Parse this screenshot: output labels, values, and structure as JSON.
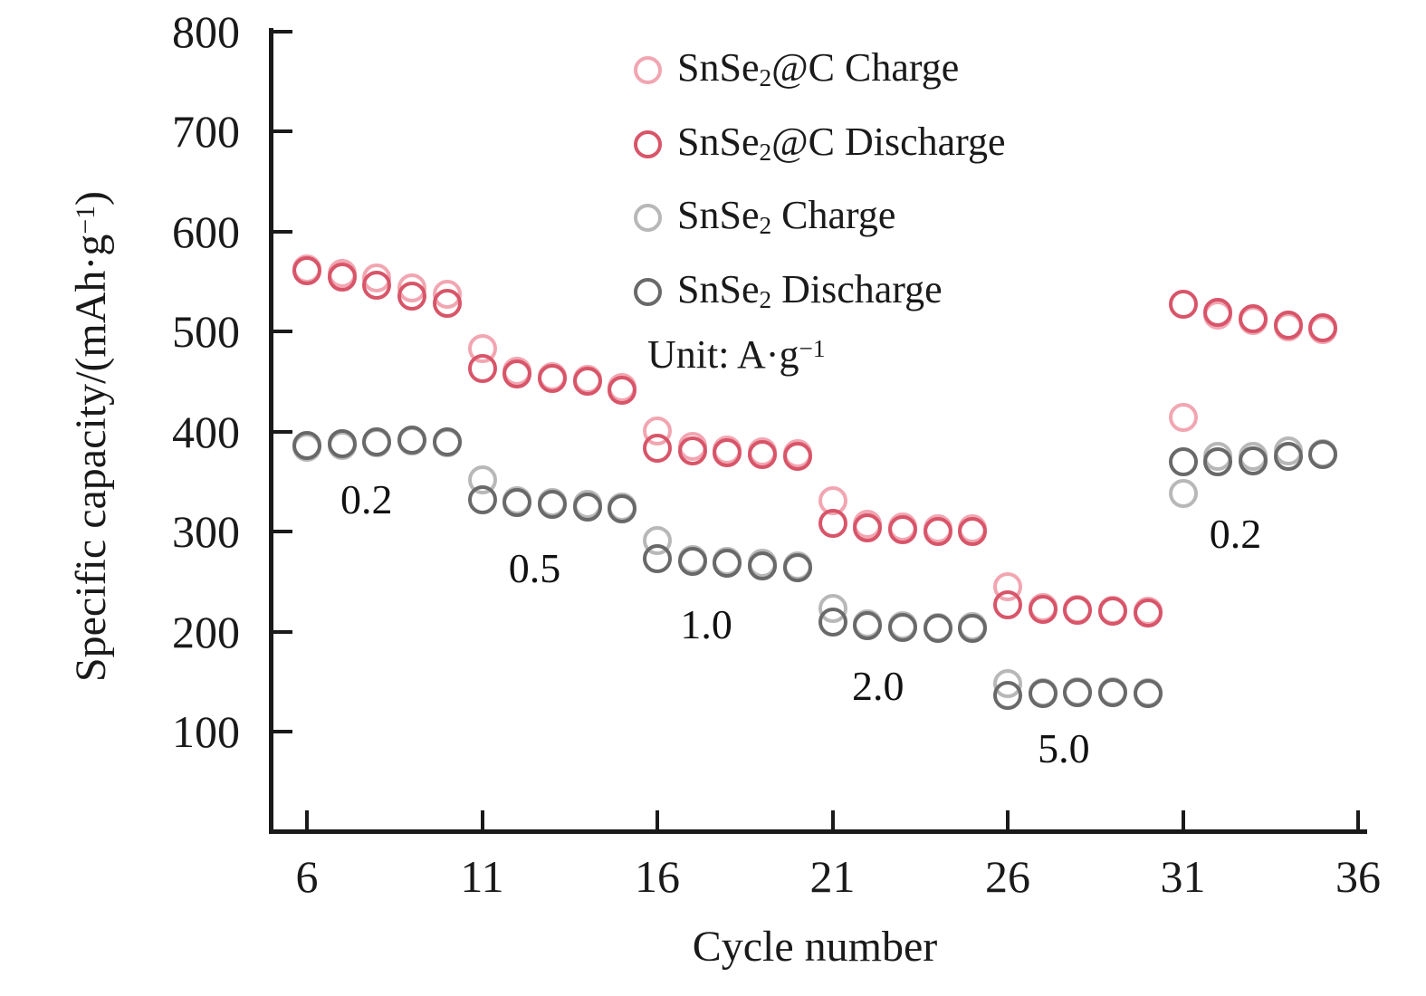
{
  "figure": {
    "background": "#ffffff",
    "text_color": "#1a1a1a",
    "x_axis_title": "Cycle number"
  },
  "y_axis_title_segments": [
    {
      "t": "Specific capacity/(mAh·g"
    },
    {
      "t": "−1",
      "sup": true
    },
    {
      "t": ")"
    }
  ],
  "legend": {
    "items": [
      {
        "key": "snse2c-charge",
        "color": "#f2a6b2",
        "segments": [
          {
            "t": "SnSe"
          },
          {
            "t": "2",
            "sub": true
          },
          {
            "t": "@C Charge"
          }
        ]
      },
      {
        "key": "snse2c-discharge",
        "color": "#d85569",
        "segments": [
          {
            "t": "SnSe"
          },
          {
            "t": "2",
            "sub": true
          },
          {
            "t": "@C Discharge"
          }
        ]
      },
      {
        "key": "snse2-charge",
        "color": "#b8b8b8",
        "segments": [
          {
            "t": "SnSe"
          },
          {
            "t": "2",
            "sub": true
          },
          {
            "t": " Charge"
          }
        ]
      },
      {
        "key": "snse2-discharge",
        "color": "#696969",
        "segments": [
          {
            "t": "SnSe"
          },
          {
            "t": "2",
            "sub": true
          },
          {
            "t": " Discharge"
          }
        ]
      }
    ],
    "unit_segments": [
      {
        "t": "Unit: A·g"
      },
      {
        "t": "−1",
        "sup": true
      }
    ]
  },
  "chart_data": {
    "type": "scatter",
    "title": "",
    "xlabel": "Cycle number",
    "ylabel": "Specific capacity/(mAh·g−1)",
    "xlim": [
      5,
      36.3
    ],
    "ylim": [
      0,
      800
    ],
    "x_ticks": [
      6,
      11,
      16,
      21,
      26,
      31,
      36
    ],
    "y_ticks": [
      100,
      200,
      300,
      400,
      500,
      600,
      700,
      800
    ],
    "grid": false,
    "legend_position": "upper-center-right",
    "rate_unit": "A·g−1",
    "x": [
      6,
      7,
      8,
      9,
      10,
      11,
      12,
      13,
      14,
      15,
      16,
      17,
      18,
      19,
      20,
      21,
      22,
      23,
      24,
      25,
      26,
      27,
      28,
      29,
      30,
      31,
      32,
      33,
      34,
      35
    ],
    "series": [
      {
        "name": "SnSe2@C Charge",
        "color": "#f2a6b2",
        "values": [
          563,
          558,
          554,
          544,
          537,
          483,
          460,
          455,
          452,
          444,
          401,
          385,
          382,
          380,
          378,
          331,
          307,
          305,
          303,
          303,
          245,
          224,
          222,
          221,
          220,
          414,
          517,
          511,
          505,
          502
        ]
      },
      {
        "name": "SnSe2 Charge",
        "color": "#b8b8b8",
        "values": [
          384,
          386,
          389,
          391,
          389,
          352,
          331,
          329,
          327,
          325,
          291,
          272,
          270,
          268,
          266,
          223,
          208,
          206,
          204,
          205,
          148,
          139,
          140,
          140,
          139,
          338,
          375,
          375,
          381,
          378
        ]
      },
      {
        "name": "SnSe2@C Discharge",
        "color": "#d85569",
        "values": [
          561,
          555,
          546,
          536,
          528,
          463,
          458,
          453,
          450,
          441,
          383,
          381,
          379,
          377,
          375,
          308,
          304,
          302,
          300,
          300,
          227,
          222,
          221,
          220,
          219,
          527,
          519,
          513,
          507,
          504
        ]
      },
      {
        "name": "SnSe2 Discharge",
        "color": "#696969",
        "values": [
          386,
          388,
          390,
          392,
          390,
          332,
          329,
          327,
          325,
          323,
          273,
          270,
          268,
          266,
          264,
          210,
          206,
          204,
          203,
          203,
          136,
          138,
          139,
          139,
          138,
          370,
          370,
          371,
          375,
          377
        ]
      }
    ],
    "rate_labels": [
      {
        "text": "0.2",
        "cycle": 7.7,
        "value": 332
      },
      {
        "text": "0.5",
        "cycle": 12.5,
        "value": 263
      },
      {
        "text": "1.0",
        "cycle": 17.4,
        "value": 207
      },
      {
        "text": "2.0",
        "cycle": 22.3,
        "value": 145
      },
      {
        "text": "5.0",
        "cycle": 27.6,
        "value": 83
      },
      {
        "text": "0.2",
        "cycle": 32.5,
        "value": 297
      }
    ]
  }
}
